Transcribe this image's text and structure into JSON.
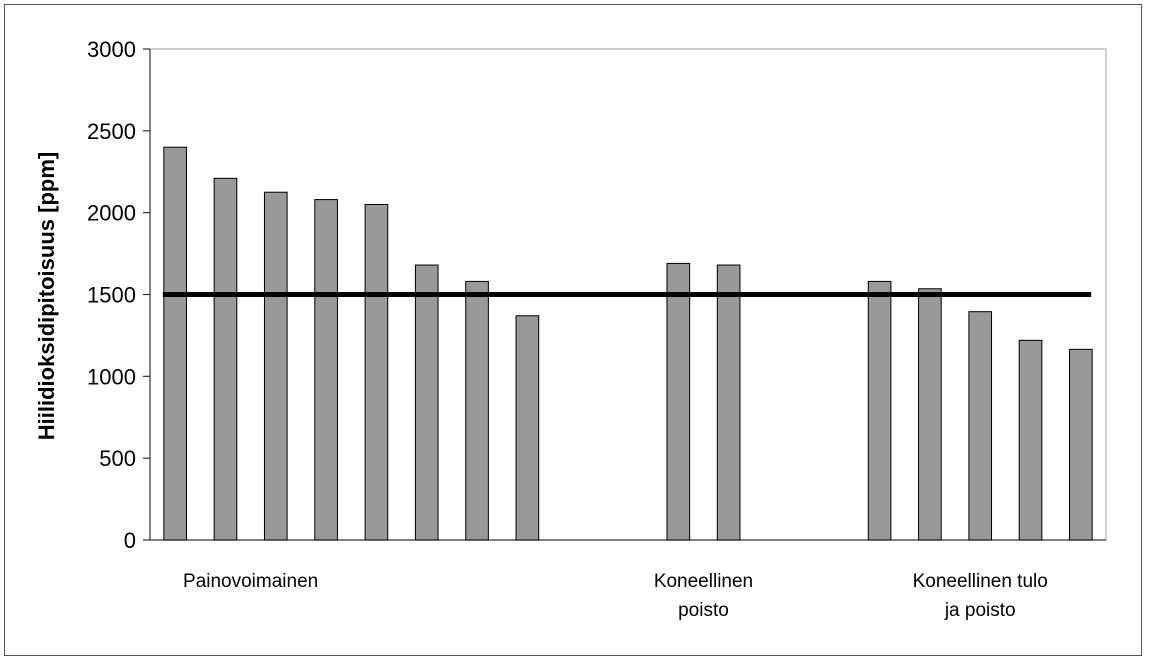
{
  "chart_data": {
    "type": "bar",
    "title": "",
    "xlabel": "",
    "ylabel": "Hiilidioksidipitoisuus [ppm]",
    "ylim": [
      0,
      3000
    ],
    "yticks": [
      0,
      500,
      1000,
      1500,
      2000,
      2500,
      3000
    ],
    "grid": false,
    "legend": "none",
    "bar_color": "#999999",
    "series": [
      {
        "values": [
          2400,
          2210,
          2125,
          2080,
          2050,
          1680,
          1580,
          1370,
          null,
          null,
          1690,
          1680,
          null,
          null,
          1580,
          1535,
          1395,
          1220,
          1165
        ]
      }
    ],
    "reference_line": {
      "value": 1500,
      "color": "#000000"
    },
    "groups": [
      {
        "label_lines": [
          "Painovoimainen"
        ],
        "start": 0,
        "end": 7
      },
      {
        "label_lines": [
          "Koneellinen",
          "poisto"
        ],
        "start": 10,
        "end": 11
      },
      {
        "label_lines": [
          "Koneellinen tulo",
          "ja poisto"
        ],
        "start": 14,
        "end": 18
      }
    ]
  }
}
